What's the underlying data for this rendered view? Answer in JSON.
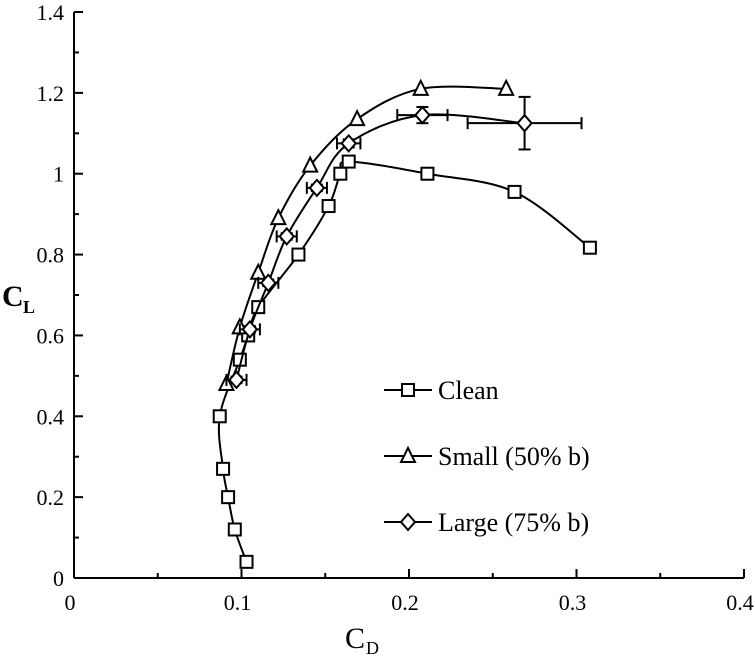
{
  "chart_data": {
    "type": "line",
    "title": "",
    "xlabel": "C",
    "xlabel_sub": "D",
    "ylabel": "C",
    "ylabel_sub": "L",
    "xlim": [
      0,
      0.4
    ],
    "ylim": [
      0,
      1.4
    ],
    "xticks": [
      "0",
      "0.1",
      "0.2",
      "0.3",
      "0.4"
    ],
    "xtick_values": [
      0,
      0.1,
      0.2,
      0.3,
      0.4
    ],
    "yticks": [
      "0",
      "0.2",
      "0.4",
      "0.6",
      "0.8",
      "1",
      "1.2",
      "1.4"
    ],
    "ytick_values": [
      0,
      0.2,
      0.4,
      0.6,
      0.8,
      1.0,
      1.2,
      1.4
    ],
    "grid": false,
    "legend_position": "center-right",
    "series": [
      {
        "name": "Clean",
        "marker": "square",
        "x": [
          0.103,
          0.096,
          0.092,
          0.089,
          0.087,
          0.099,
          0.104,
          0.11,
          0.134,
          0.152,
          0.159,
          0.164,
          0.211,
          0.263,
          0.308
        ],
        "y": [
          0.04,
          0.12,
          0.2,
          0.27,
          0.4,
          0.54,
          0.6,
          0.67,
          0.8,
          0.92,
          1.0,
          1.03,
          1.0,
          0.955,
          0.817
        ]
      },
      {
        "name": "Small (50% b)",
        "marker": "triangle",
        "x": [
          0.091,
          0.099,
          0.11,
          0.122,
          0.141,
          0.169,
          0.207,
          0.258
        ],
        "y": [
          0.48,
          0.62,
          0.755,
          0.89,
          1.02,
          1.135,
          1.21,
          1.21
        ]
      },
      {
        "name": "Large (75% b)",
        "marker": "diamond",
        "x": [
          0.097,
          0.105,
          0.116,
          0.127,
          0.145,
          0.164,
          0.208,
          0.269
        ],
        "y": [
          0.49,
          0.615,
          0.73,
          0.845,
          0.965,
          1.075,
          1.145,
          1.125
        ],
        "x_err": [
          0.006,
          0.006,
          0.006,
          0.006,
          0.006,
          0.007,
          0.015,
          0.034
        ],
        "y_err": [
          0.008,
          0.008,
          0.008,
          0.008,
          0.008,
          0.01,
          0.02,
          0.065
        ]
      }
    ]
  }
}
